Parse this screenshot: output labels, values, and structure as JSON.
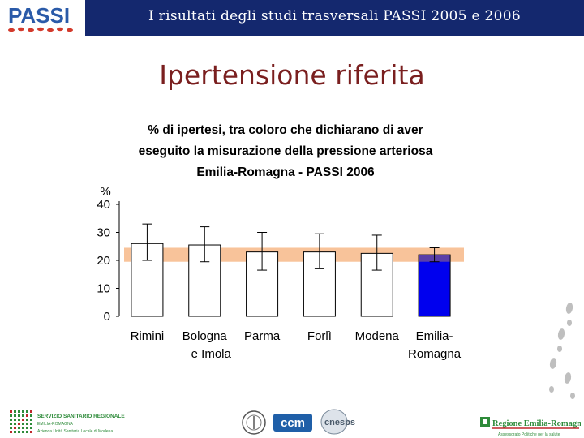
{
  "header": {
    "title": "I risultati degli studi trasversali  PASSI 2005 e 2006",
    "bar_color": "#14286e"
  },
  "logo": {
    "text": "PASSI",
    "color": "#2a5aa8",
    "accent": "#d33a2c"
  },
  "slide": {
    "title": "Ipertensione riferita",
    "title_color": "#7a1f1f"
  },
  "chart_data": {
    "type": "bar",
    "title_lines": [
      "% di ipertesi, tra coloro che dichiarano di aver",
      "eseguito la misurazione della pressione arteriosa",
      "Emilia-Romagna  -  PASSI 2006"
    ],
    "ylabel": "%",
    "ylim": [
      0,
      40
    ],
    "yticks": [
      0,
      10,
      20,
      30,
      40
    ],
    "categories": [
      [
        "Rimini"
      ],
      [
        "Bologna",
        "e Imola"
      ],
      [
        "Parma"
      ],
      [
        "Forlì"
      ],
      [
        "Modena"
      ],
      [
        "Emilia-",
        "Romagna"
      ]
    ],
    "values": [
      26,
      25.5,
      23,
      23,
      22.5,
      22
    ],
    "ci_low": [
      20,
      19.5,
      16.5,
      17,
      16.5,
      19.5
    ],
    "ci_high": [
      33,
      32,
      30,
      29.5,
      29,
      24.5
    ],
    "regional_band": [
      19.5,
      24.5
    ],
    "band_color": "#f8c39a",
    "highlight_index": 5,
    "highlight_color": "#0000ee",
    "highlight_top_color": "#5a3fa8",
    "grid": false
  },
  "footer": {
    "ausl_lines": [
      "SERVIZIO SANITARIO REGIONALE",
      "EMILIA-ROMAGNA",
      "Azienda Unità Sanitaria Locale di Modena"
    ],
    "ccm": "ccm",
    "cnesps": "cnesps",
    "region_name": "Regione Emilia-Romagna",
    "region_tagline": "Assessorato Politiche per la salute",
    "green": "#2e8b3a",
    "red": "#c0282d"
  }
}
